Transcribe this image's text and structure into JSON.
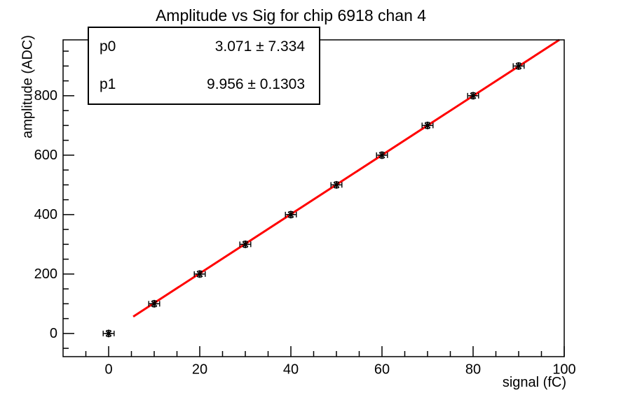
{
  "chart_data": {
    "type": "scatter",
    "title": "Amplitude vs Sig for chip 6918 chan 4",
    "xlabel": "signal (fC)",
    "ylabel": "amplitude (ADC)",
    "xlim": [
      -10,
      100
    ],
    "ylim": [
      -78,
      988
    ],
    "x_major_ticks": [
      0,
      20,
      40,
      60,
      80,
      100
    ],
    "x_minor_step": 5,
    "y_major_ticks": [
      0,
      200,
      400,
      600,
      800
    ],
    "y_minor_step": 50,
    "grid": "off",
    "points": {
      "x": [
        0,
        10,
        20,
        30,
        40,
        50,
        60,
        70,
        80,
        90
      ],
      "y": [
        0,
        100,
        200,
        300,
        400,
        500,
        600,
        700,
        800,
        900
      ],
      "x_error": 1.2,
      "y_error": 10,
      "marker": "asterisk",
      "marker_color": "#000000"
    },
    "fit": {
      "type": "linear",
      "p0": 3.071,
      "p1": 9.956,
      "x_range": [
        5.4,
        100
      ],
      "color": "#ff0000"
    }
  },
  "stats": {
    "rows": [
      {
        "name": "p0",
        "value": "3.071 ± 7.334"
      },
      {
        "name": "p1",
        "value": "9.956 ± 0.1303"
      }
    ]
  }
}
